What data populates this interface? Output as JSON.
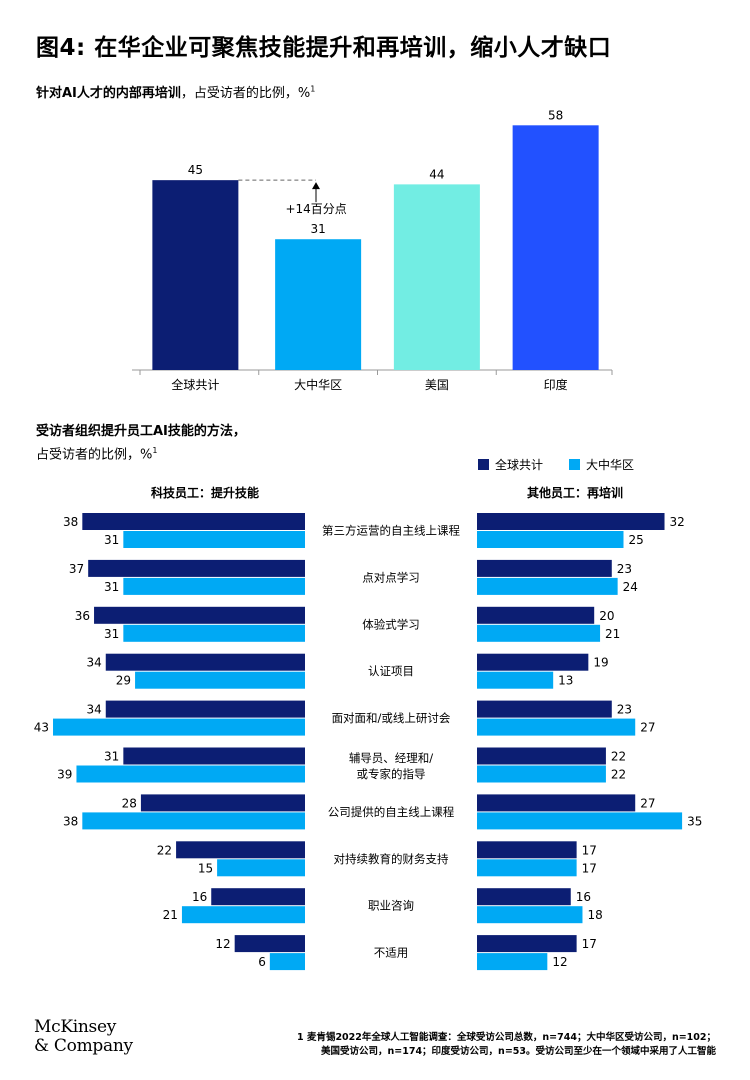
{
  "header": {
    "title": "图4: 在华企业可聚焦技能提升和再培训，缩小人才缺口",
    "subtitle1_bold": "针对AI人才的内部再培训",
    "subtitle1_rest": "，占受访者的比例，%",
    "subtitle1_sup": "1",
    "subtitle2_line1": "受访者组织提升员工AI技能的方法，",
    "subtitle2_line2": "占受访者的比例，%",
    "subtitle2_sup": "1"
  },
  "colors": {
    "dark_navy": "#0c1e73",
    "light_blue": "#00a9f4",
    "aqua": "#72ede3",
    "royal_blue": "#2251ff"
  },
  "chart_data": [
    {
      "type": "bar",
      "categories": [
        "全球共计",
        "大中华区",
        "美国",
        "印度"
      ],
      "values": [
        45,
        31,
        44,
        58
      ],
      "colors": [
        "#0c1e73",
        "#00a9f4",
        "#72ede3",
        "#2251ff"
      ],
      "annotation": "+14百分点",
      "ylim": [
        0,
        64
      ]
    },
    {
      "type": "bar",
      "orientation": "horizontal-butterfly",
      "legend": [
        "全球共计",
        "大中华区"
      ],
      "left_title": "科技员工：提升技能",
      "right_title": "其他员工：再培训",
      "categories": [
        "第三方运营的自主线上课程",
        "点对点学习",
        "体验式学习",
        "认证项目",
        "面对面和/或线上研讨会",
        "辅导员、经理和/ 或专家的指导",
        "公司提供的自主线上课程",
        "对持续教育的财务支持",
        "职业咨询",
        "不适用"
      ],
      "left_series": [
        {
          "name": "全球共计",
          "values": [
            38,
            37,
            36,
            34,
            34,
            31,
            28,
            22,
            16,
            12
          ]
        },
        {
          "name": "大中华区",
          "values": [
            31,
            31,
            31,
            29,
            43,
            39,
            38,
            15,
            21,
            6
          ]
        }
      ],
      "right_series": [
        {
          "name": "全球共计",
          "values": [
            32,
            23,
            20,
            19,
            23,
            22,
            27,
            17,
            16,
            17
          ]
        },
        {
          "name": "大中华区",
          "values": [
            25,
            24,
            21,
            13,
            27,
            22,
            35,
            17,
            18,
            12
          ]
        }
      ]
    }
  ],
  "footer": {
    "logo_line1": "McKinsey",
    "logo_line2": "& Company",
    "footnote_line1": "1 麦肯锡2022年全球人工智能调查：全球受访公司总数，n=744；大中华区受访公司，n=102；",
    "footnote_line2": "美国受访公司，n=174；印度受访公司，n=53。受访公司至少在一个领域中采用了人工智能"
  }
}
